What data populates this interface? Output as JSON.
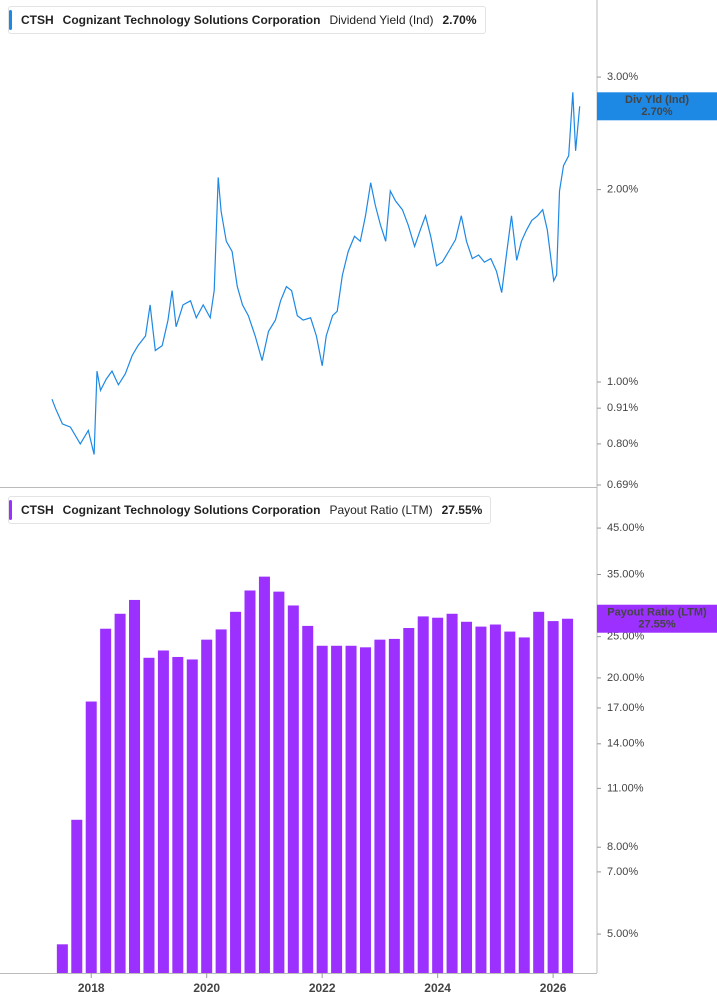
{
  "chart_data": [
    {
      "type": "line",
      "ticker": "CTSH",
      "company": "Cognizant Technology Solutions Corporation",
      "metric": "Dividend Yield (Ind)",
      "tag_label": "Div Yld (Ind)",
      "current": {
        "value": 2.7,
        "label": "2.70%"
      },
      "color": "#1e88e5",
      "log": true,
      "xlim": [
        2016.42,
        2026.76
      ],
      "ylim": [
        0.685,
        3.96
      ],
      "yticks": [
        {
          "value": 3,
          "label": "3.00%"
        },
        {
          "value": 2,
          "label": "2.00%"
        },
        {
          "value": 1,
          "label": "1.00%"
        },
        {
          "value": 0.91,
          "label": "0.91%"
        },
        {
          "value": 0.8,
          "label": "0.80%"
        },
        {
          "value": 0.69,
          "label": "0.69%"
        }
      ],
      "x": [
        2017.32,
        2017.38,
        2017.5,
        2017.64,
        2017.81,
        2017.95,
        2018.05,
        2018.1,
        2018.16,
        2018.26,
        2018.36,
        2018.47,
        2018.59,
        2018.71,
        2018.81,
        2018.94,
        2019.02,
        2019.11,
        2019.23,
        2019.33,
        2019.4,
        2019.47,
        2019.59,
        2019.72,
        2019.82,
        2019.94,
        2020.06,
        2020.13,
        2020.2,
        2020.25,
        2020.34,
        2020.44,
        2020.53,
        2020.62,
        2020.72,
        2020.84,
        2020.96,
        2021.07,
        2021.19,
        2021.28,
        2021.38,
        2021.47,
        2021.57,
        2021.67,
        2021.8,
        2021.9,
        2022.0,
        2022.07,
        2022.18,
        2022.26,
        2022.35,
        2022.45,
        2022.56,
        2022.66,
        2022.75,
        2022.84,
        2022.92,
        2023.01,
        2023.1,
        2023.18,
        2023.27,
        2023.39,
        2023.49,
        2023.6,
        2023.7,
        2023.79,
        2023.88,
        2023.98,
        2024.08,
        2024.19,
        2024.31,
        2024.41,
        2024.5,
        2024.6,
        2024.71,
        2024.81,
        2024.92,
        2025.02,
        2025.11,
        2025.19,
        2025.28,
        2025.37,
        2025.45,
        2025.54,
        2025.63,
        2025.73,
        2025.82,
        2025.9,
        2026.01,
        2026.06,
        2026.11,
        2026.18,
        2026.27,
        2026.34,
        2026.39,
        2026.46
      ],
      "values": [
        0.94,
        0.91,
        0.86,
        0.85,
        0.8,
        0.84,
        0.77,
        1.04,
        0.97,
        1.01,
        1.04,
        0.99,
        1.03,
        1.1,
        1.14,
        1.18,
        1.32,
        1.12,
        1.14,
        1.25,
        1.39,
        1.22,
        1.32,
        1.34,
        1.26,
        1.32,
        1.26,
        1.39,
        2.09,
        1.85,
        1.66,
        1.6,
        1.41,
        1.32,
        1.27,
        1.18,
        1.08,
        1.2,
        1.25,
        1.34,
        1.41,
        1.39,
        1.27,
        1.25,
        1.26,
        1.18,
        1.06,
        1.18,
        1.27,
        1.29,
        1.47,
        1.6,
        1.69,
        1.66,
        1.82,
        2.05,
        1.89,
        1.76,
        1.66,
        1.99,
        1.92,
        1.86,
        1.76,
        1.63,
        1.73,
        1.82,
        1.69,
        1.52,
        1.54,
        1.6,
        1.67,
        1.82,
        1.66,
        1.56,
        1.58,
        1.54,
        1.56,
        1.49,
        1.38,
        1.58,
        1.82,
        1.55,
        1.66,
        1.73,
        1.79,
        1.82,
        1.86,
        1.73,
        1.44,
        1.47,
        1.99,
        2.18,
        2.26,
        2.84,
        2.3,
        2.7
      ]
    },
    {
      "type": "bar",
      "ticker": "CTSH",
      "company": "Cognizant Technology Solutions Corporation",
      "metric": "Payout Ratio (LTM)",
      "tag_label": "Payout Ratio (LTM)",
      "current": {
        "value": 27.55,
        "label": "27.55%"
      },
      "color": "#9b30ff",
      "log": true,
      "xlim": [
        2016.42,
        2026.76
      ],
      "xticks": [
        2018,
        2020,
        2022,
        2024,
        2026
      ],
      "ylim": [
        4.05,
        54.7
      ],
      "yticks": [
        {
          "value": 45,
          "label": "45.00%"
        },
        {
          "value": 35,
          "label": "35.00%"
        },
        {
          "value": 25,
          "label": "25.00%"
        },
        {
          "value": 20,
          "label": "20.00%"
        },
        {
          "value": 17,
          "label": "17.00%"
        },
        {
          "value": 14,
          "label": "14.00%"
        },
        {
          "value": 11,
          "label": "11.00%"
        },
        {
          "value": 8,
          "label": "8.00%"
        },
        {
          "value": 7,
          "label": "7.00%"
        },
        {
          "value": 5,
          "label": "5.00%"
        }
      ],
      "x": [
        2017.5,
        2017.75,
        2018,
        2018.25,
        2018.5,
        2018.75,
        2019,
        2019.25,
        2019.5,
        2019.75,
        2020,
        2020.25,
        2020.5,
        2020.75,
        2021,
        2021.25,
        2021.5,
        2021.75,
        2022,
        2022.25,
        2022.5,
        2022.75,
        2023,
        2023.25,
        2023.5,
        2023.75,
        2024,
        2024.25,
        2024.5,
        2024.75,
        2025,
        2025.25,
        2025.5,
        2025.75,
        2026,
        2026.25
      ],
      "values": [
        4.73,
        9.28,
        17.6,
        26.1,
        28.3,
        30.5,
        22.3,
        23.2,
        22.4,
        22.1,
        24.6,
        26.0,
        28.6,
        32.1,
        34.6,
        31.9,
        29.6,
        26.5,
        23.8,
        23.8,
        23.8,
        23.6,
        24.6,
        24.7,
        26.2,
        27.9,
        27.7,
        28.3,
        27.1,
        26.4,
        26.7,
        25.7,
        24.9,
        28.6,
        27.2,
        27.55
      ]
    }
  ]
}
